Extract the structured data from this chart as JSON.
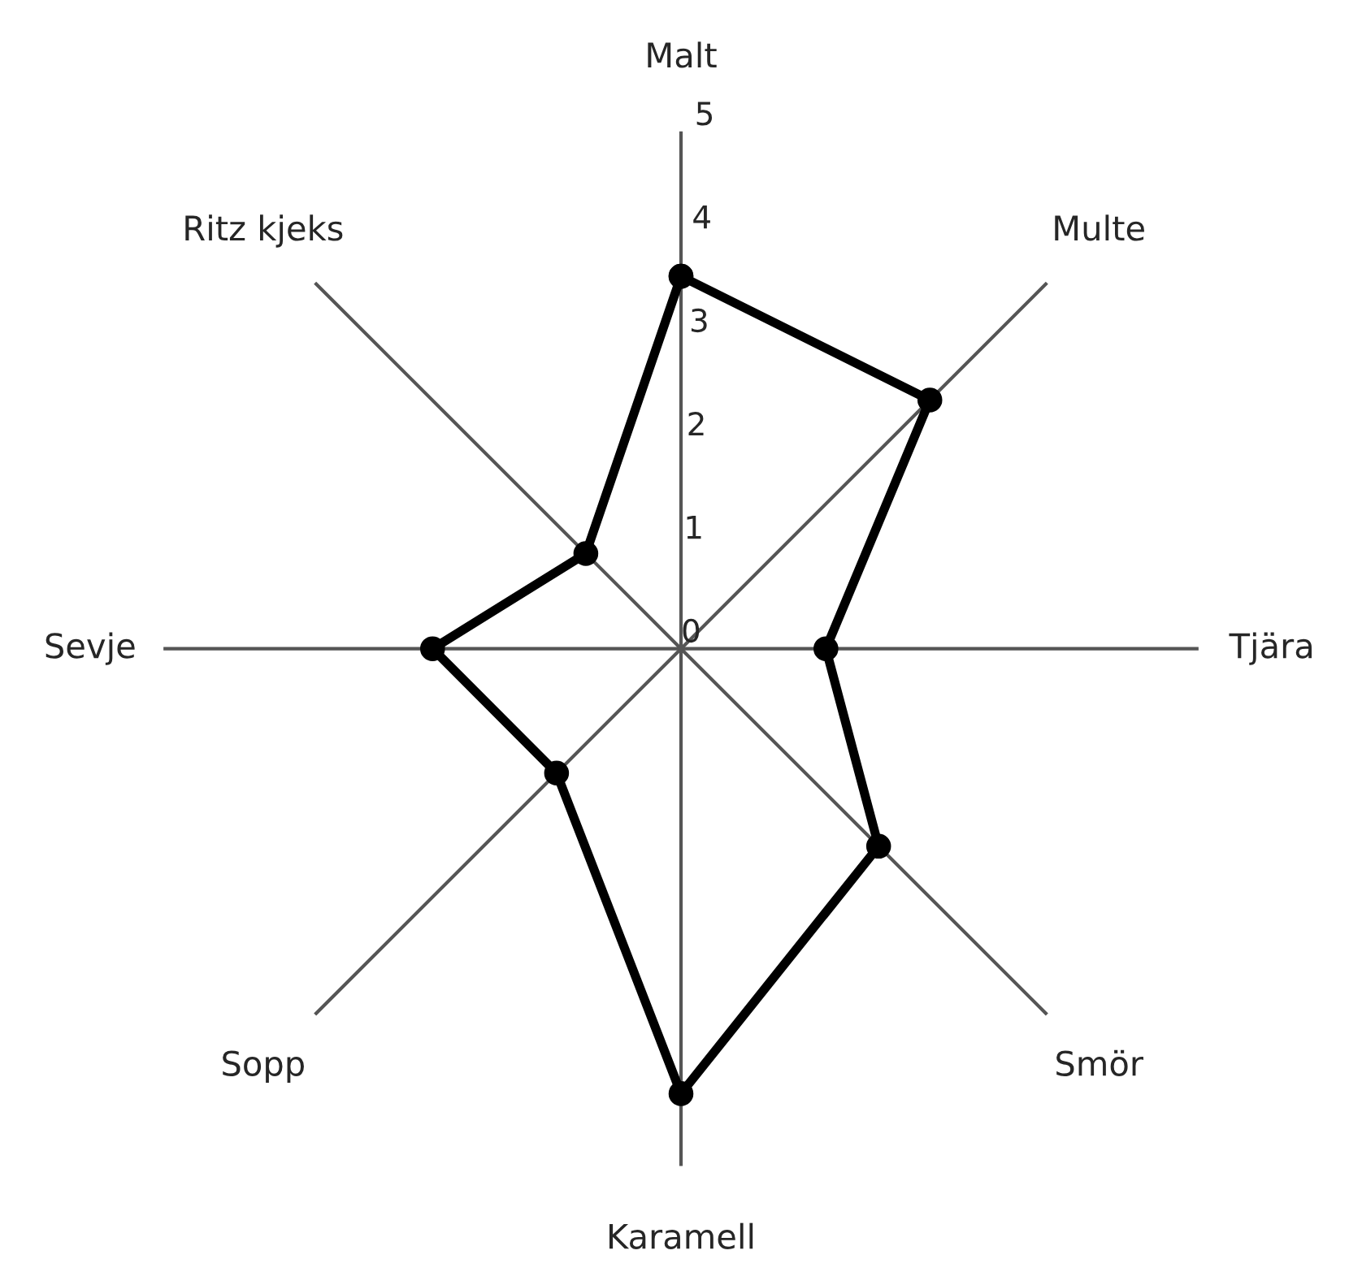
{
  "chart_data": {
    "type": "radar",
    "categories": [
      "Malt",
      "Multe",
      "Tjära",
      "Smör",
      "Karamell",
      "Sopp",
      "Sevje",
      "Ritz kjeks"
    ],
    "series": [
      {
        "color": "#000000",
        "values": [
          3.6,
          3.4,
          1.4,
          2.7,
          4.3,
          1.7,
          2.4,
          1.3
        ]
      }
    ],
    "ylim": [
      0,
      5
    ],
    "yticks": [
      0,
      1,
      2,
      3,
      4,
      5
    ],
    "grid": "x",
    "marker": "circle",
    "line_style": "solid"
  }
}
